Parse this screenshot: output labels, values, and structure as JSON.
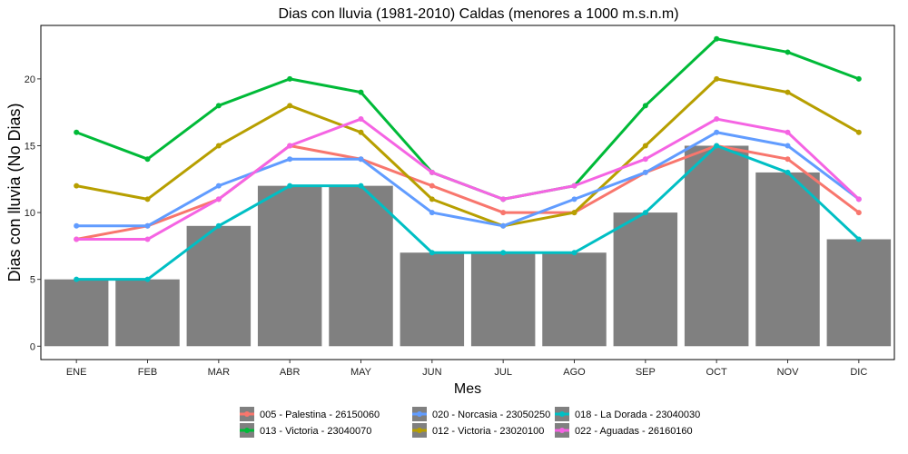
{
  "chart_data": {
    "type": "bar",
    "title": "Dias con lluvia (1981-2010) Caldas (menores a 1000 m.s.n.m)",
    "xlabel": "Mes",
    "ylabel": "Dias con lluvia (No Dias)",
    "categories": [
      "ENE",
      "FEB",
      "MAR",
      "ABR",
      "MAY",
      "JUN",
      "JUL",
      "AGO",
      "SEP",
      "OCT",
      "NOV",
      "DIC"
    ],
    "ylim": [
      -1,
      24
    ],
    "yticks": [
      0,
      5,
      10,
      15,
      20
    ],
    "grid": false,
    "legend_position": "bottom",
    "bar_color": "#808080",
    "bars": [
      5,
      5,
      9,
      12,
      12,
      7,
      7,
      7,
      10,
      15,
      13,
      8
    ],
    "series": [
      {
        "name": "005 - Palestina - 26150060",
        "color": "#F8766D",
        "values": [
          8,
          9,
          11,
          15,
          14,
          12,
          10,
          10,
          13,
          15,
          14,
          10
        ]
      },
      {
        "name": "012 - Victoria - 23020100",
        "color": "#B79F00",
        "values": [
          12,
          11,
          15,
          18,
          16,
          11,
          9,
          10,
          15,
          20,
          19,
          16
        ]
      },
      {
        "name": "013 - Victoria - 23040070",
        "color": "#00BA38",
        "values": [
          16,
          14,
          18,
          20,
          19,
          13,
          11,
          12,
          18,
          23,
          22,
          20
        ]
      },
      {
        "name": "018 - La Dorada - 23040030",
        "color": "#00BFC4",
        "values": [
          5,
          5,
          9,
          12,
          12,
          7,
          7,
          7,
          10,
          15,
          13,
          8
        ]
      },
      {
        "name": "020 - Norcasia - 23050250",
        "color": "#619CFF",
        "values": [
          9,
          9,
          12,
          14,
          14,
          10,
          9,
          11,
          13,
          16,
          15,
          11
        ]
      },
      {
        "name": "022 - Aguadas - 26160160",
        "color": "#F564E3",
        "values": [
          8,
          8,
          11,
          15,
          17,
          13,
          11,
          12,
          14,
          17,
          16,
          11
        ]
      }
    ],
    "legend_order": [
      0,
      2,
      4,
      1,
      3,
      5
    ]
  }
}
